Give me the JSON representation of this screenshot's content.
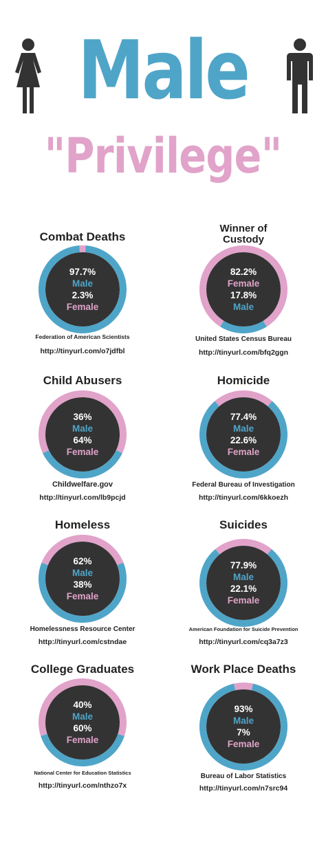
{
  "header": {
    "title": "Male",
    "subtitle": "\"Privilege\""
  },
  "colors": {
    "male": "#4fa5c8",
    "female": "#e1a3c9",
    "center": "#333333",
    "figure": "#333333"
  },
  "icons": {
    "left": "female-figure-icon",
    "right": "male-figure-icon"
  },
  "chart_data": [
    {
      "type": "pie",
      "title": "Combat Deaths",
      "categories": [
        "Male",
        "Female"
      ],
      "values": [
        97.7,
        2.3
      ],
      "labels": [
        "97.7%",
        "2.3%"
      ],
      "order": [
        "Male",
        "Female"
      ],
      "source": "Federation of American Scientists",
      "url": "http://tinyurl.com/o7jdfbl"
    },
    {
      "type": "pie",
      "title": "Winner of Custody",
      "categories": [
        "Male",
        "Female"
      ],
      "values": [
        17.8,
        82.2
      ],
      "labels": [
        "17.8%",
        "82.2%"
      ],
      "order": [
        "Female",
        "Male"
      ],
      "source": "United States Census Bureau",
      "url": "http://tinyurl.com/bfq2ggn"
    },
    {
      "type": "pie",
      "title": "Child Abusers",
      "categories": [
        "Male",
        "Female"
      ],
      "values": [
        36,
        64
      ],
      "labels": [
        "36%",
        "64%"
      ],
      "order": [
        "Male",
        "Female"
      ],
      "source": "Childwelfare.gov",
      "url": "http://tinyurl.com/lb9pcjd"
    },
    {
      "type": "pie",
      "title": "Homicide",
      "categories": [
        "Male",
        "Female"
      ],
      "values": [
        77.4,
        22.6
      ],
      "labels": [
        "77.4%",
        "22.6%"
      ],
      "order": [
        "Male",
        "Female"
      ],
      "source": "Federal Bureau of Investigation",
      "url": "http://tinyurl.com/6kkoezh"
    },
    {
      "type": "pie",
      "title": "Homeless",
      "categories": [
        "Male",
        "Female"
      ],
      "values": [
        62,
        38
      ],
      "labels": [
        "62%",
        "38%"
      ],
      "order": [
        "Male",
        "Female"
      ],
      "source": "Homelessness Resource Center",
      "url": "http://tinyurl.com/cstndae"
    },
    {
      "type": "pie",
      "title": "Suicides",
      "categories": [
        "Male",
        "Female"
      ],
      "values": [
        77.9,
        22.1
      ],
      "labels": [
        "77.9%",
        "22.1%"
      ],
      "order": [
        "Male",
        "Female"
      ],
      "source": "American Foundation for Suicide Prevention",
      "url": "http://tinyurl.com/cq3a7z3"
    },
    {
      "type": "pie",
      "title": "College Graduates",
      "categories": [
        "Male",
        "Female"
      ],
      "values": [
        40,
        60
      ],
      "labels": [
        "40%",
        "60%"
      ],
      "order": [
        "Male",
        "Female"
      ],
      "source": "National Center for Education Statistics",
      "url": "http://tinyurl.com/nthzo7x"
    },
    {
      "type": "pie",
      "title": "Work Place Deaths",
      "categories": [
        "Male",
        "Female"
      ],
      "values": [
        93,
        7
      ],
      "labels": [
        "93%",
        "7%"
      ],
      "order": [
        "Male",
        "Female"
      ],
      "source": "Bureau of Labor Statistics",
      "url": "http://tinyurl.com/n7src94"
    }
  ]
}
